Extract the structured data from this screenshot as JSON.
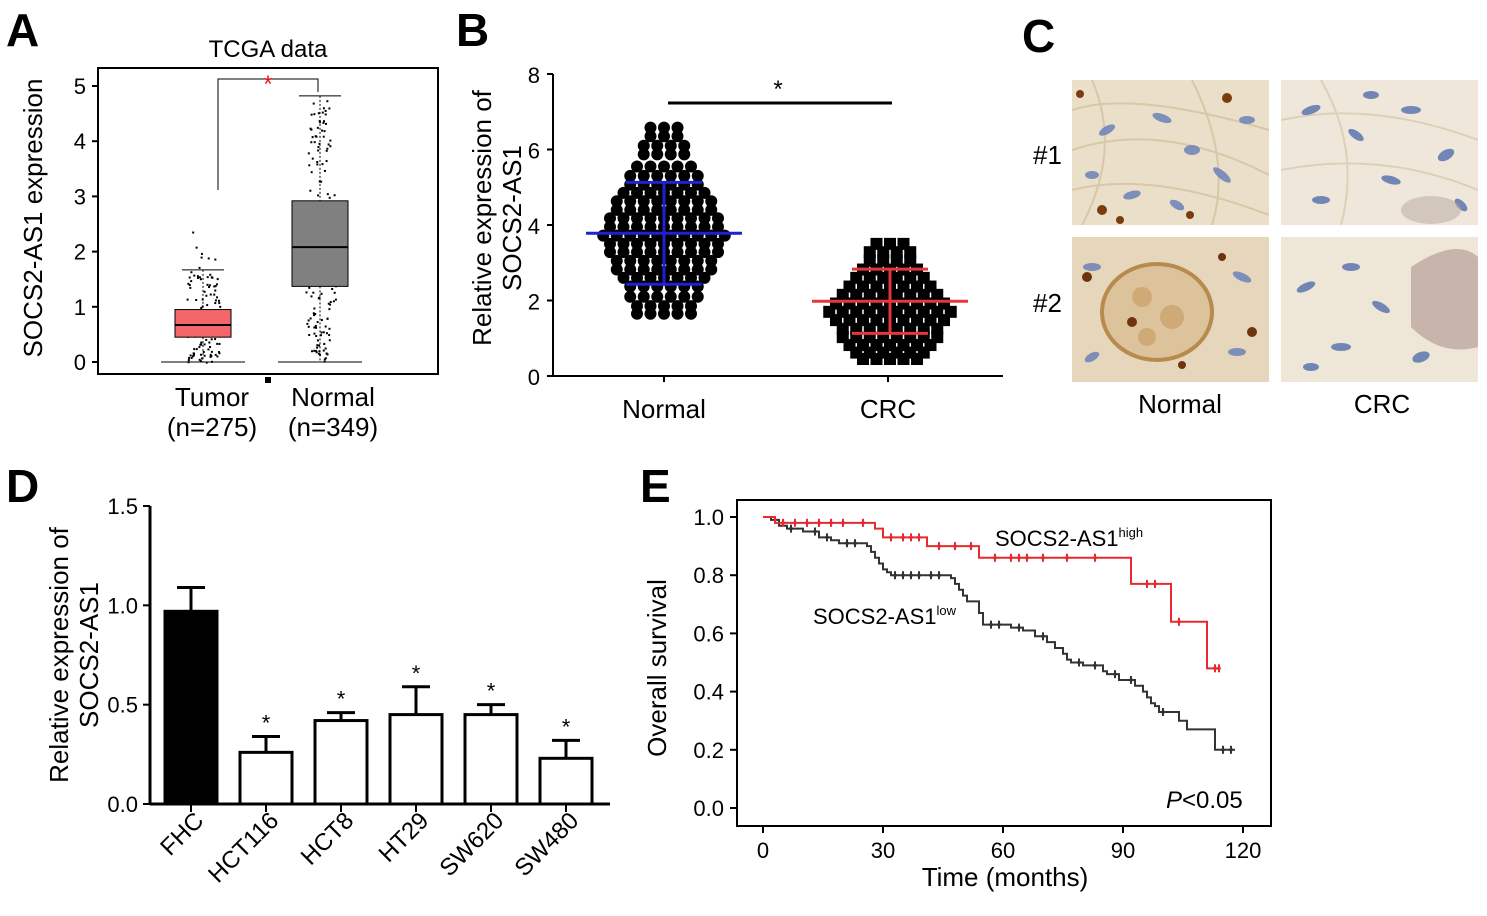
{
  "figure": {
    "panel_labels": [
      "A",
      "B",
      "C",
      "D",
      "E"
    ]
  },
  "chart_data": [
    {
      "panel": "A",
      "type": "box",
      "title": "TCGA data",
      "ylabel": "SOCS2-AS1 expression",
      "ylim": [
        0,
        5
      ],
      "yticks": [
        "0",
        "1",
        "2",
        "3",
        "4",
        "5"
      ],
      "categories": [
        "Tumor",
        "Normal"
      ],
      "category_n": [
        "(n=275)",
        "(n=349)"
      ],
      "boxes": [
        {
          "name": "Tumor",
          "color": "#f4666a",
          "min": 0.0,
          "q1": 0.45,
          "median": 0.67,
          "q3": 0.95,
          "max": 1.67,
          "n": 275,
          "outlier_max": 2.45
        },
        {
          "name": "Normal",
          "color": "#808080",
          "min": 0.0,
          "q1": 1.37,
          "median": 2.08,
          "q3": 2.92,
          "max": 4.82,
          "n": 349
        }
      ],
      "significance": "*",
      "significance_color": "#e31a1c"
    },
    {
      "panel": "B",
      "type": "scatter",
      "ylabel_lines": [
        "Relative expression of",
        "SOCS2-AS1"
      ],
      "ylim": [
        0,
        8
      ],
      "yticks": [
        "0",
        "2",
        "4",
        "6",
        "8"
      ],
      "categories": [
        "Normal",
        "CRC"
      ],
      "series": [
        {
          "name": "Normal",
          "marker": "circle",
          "mean": 3.78,
          "sd": 1.35,
          "min": 1.65,
          "max": 6.58,
          "bar_color": "#1f1fd4",
          "row_values": [
            6.58,
            6.35,
            6.1,
            5.87,
            5.55,
            5.3,
            5.07,
            4.85,
            4.63,
            4.4,
            4.18,
            3.95,
            3.72,
            3.5,
            3.28,
            3.05,
            2.82,
            2.6,
            2.37,
            2.1,
            1.85,
            1.65
          ]
        },
        {
          "name": "CRC",
          "marker": "square",
          "mean": 1.98,
          "sd": 0.85,
          "min": 0.45,
          "max": 3.5,
          "bar_color": "#e8353b",
          "row_values": [
            3.5,
            3.28,
            3.05,
            2.82,
            2.6,
            2.37,
            2.15,
            1.92,
            1.7,
            1.48,
            1.25,
            1.03,
            0.82,
            0.62,
            0.45
          ]
        }
      ],
      "significance": "*"
    },
    {
      "panel": "D",
      "type": "bar",
      "ylabel_lines": [
        "Relative expression of",
        "SOCS2-AS1"
      ],
      "ylim": [
        0,
        1.5
      ],
      "yticks": [
        "0.0",
        "0.5",
        "1.0",
        "1.5"
      ],
      "categories": [
        "FHC",
        "HCT116",
        "HCT8",
        "HT29",
        "SW620",
        "SW480"
      ],
      "values": [
        0.97,
        0.26,
        0.42,
        0.45,
        0.45,
        0.23
      ],
      "errors": [
        0.12,
        0.08,
        0.04,
        0.14,
        0.05,
        0.09
      ],
      "fills": [
        "#000000",
        "#ffffff",
        "#ffffff",
        "#ffffff",
        "#ffffff",
        "#ffffff"
      ],
      "significance": [
        "",
        "*",
        "*",
        "*",
        "*",
        "*"
      ]
    },
    {
      "panel": "E",
      "type": "line",
      "subtype": "kaplan-meier",
      "xlabel": "Time (months)",
      "ylabel": "Overall survival",
      "xlim": [
        0,
        120
      ],
      "ylim": [
        0,
        1.0
      ],
      "xticks": [
        "0",
        "30",
        "60",
        "90",
        "120"
      ],
      "yticks": [
        "0.0",
        "0.2",
        "0.4",
        "0.6",
        "0.8",
        "1.0"
      ],
      "series": [
        {
          "name_main": "SOCS2-AS1",
          "name_sup": "high",
          "color": "#e8292f",
          "steps": [
            [
              0,
              1.0
            ],
            [
              3,
              0.98
            ],
            [
              28,
              0.96
            ],
            [
              30,
              0.93
            ],
            [
              41,
              0.9
            ],
            [
              54,
              0.86
            ],
            [
              92,
              0.77
            ],
            [
              102,
              0.64
            ],
            [
              111,
              0.48
            ],
            [
              114,
              0.48
            ]
          ],
          "censor": [
            [
              5,
              0.98
            ],
            [
              8,
              0.98
            ],
            [
              11,
              0.98
            ],
            [
              14,
              0.98
            ],
            [
              17,
              0.98
            ],
            [
              20,
              0.98
            ],
            [
              25,
              0.98
            ],
            [
              32,
              0.93
            ],
            [
              35,
              0.93
            ],
            [
              37,
              0.93
            ],
            [
              39,
              0.93
            ],
            [
              44,
              0.9
            ],
            [
              48,
              0.9
            ],
            [
              52,
              0.9
            ],
            [
              58,
              0.86
            ],
            [
              62,
              0.86
            ],
            [
              64,
              0.86
            ],
            [
              66,
              0.86
            ],
            [
              70,
              0.86
            ],
            [
              76,
              0.86
            ],
            [
              83,
              0.86
            ],
            [
              96,
              0.77
            ],
            [
              98,
              0.77
            ],
            [
              104,
              0.64
            ],
            [
              113,
              0.48
            ],
            [
              114,
              0.48
            ]
          ]
        },
        {
          "name_main": "SOCS2-AS1",
          "name_sup": "low",
          "color": "#333333",
          "steps": [
            [
              0,
              1.0
            ],
            [
              2,
              0.99
            ],
            [
              4,
              0.97
            ],
            [
              6,
              0.96
            ],
            [
              10,
              0.95
            ],
            [
              14,
              0.93
            ],
            [
              17,
              0.92
            ],
            [
              19,
              0.91
            ],
            [
              26,
              0.9
            ],
            [
              27,
              0.88
            ],
            [
              28,
              0.86
            ],
            [
              29,
              0.84
            ],
            [
              30,
              0.82
            ],
            [
              31,
              0.81
            ],
            [
              32,
              0.8
            ],
            [
              47,
              0.79
            ],
            [
              48,
              0.77
            ],
            [
              49,
              0.75
            ],
            [
              50,
              0.73
            ],
            [
              51,
              0.71
            ],
            [
              54,
              0.67
            ],
            [
              55,
              0.63
            ],
            [
              62,
              0.62
            ],
            [
              65,
              0.61
            ],
            [
              68,
              0.59
            ],
            [
              71,
              0.57
            ],
            [
              73,
              0.55
            ],
            [
              75,
              0.53
            ],
            [
              76,
              0.51
            ],
            [
              77,
              0.5
            ],
            [
              80,
              0.49
            ],
            [
              85,
              0.47
            ],
            [
              86,
              0.46
            ],
            [
              89,
              0.44
            ],
            [
              93,
              0.42
            ],
            [
              95,
              0.4
            ],
            [
              96,
              0.38
            ],
            [
              97,
              0.36
            ],
            [
              98,
              0.35
            ],
            [
              99,
              0.33
            ],
            [
              104,
              0.3
            ],
            [
              106,
              0.27
            ],
            [
              113,
              0.2
            ],
            [
              118,
              0.2
            ]
          ],
          "censor": [
            [
              7,
              0.96
            ],
            [
              13,
              0.95
            ],
            [
              16,
              0.93
            ],
            [
              21,
              0.91
            ],
            [
              23,
              0.91
            ],
            [
              33,
              0.8
            ],
            [
              35,
              0.8
            ],
            [
              37,
              0.8
            ],
            [
              39,
              0.8
            ],
            [
              42,
              0.8
            ],
            [
              44,
              0.8
            ],
            [
              57,
              0.63
            ],
            [
              59,
              0.63
            ],
            [
              64,
              0.62
            ],
            [
              70,
              0.59
            ],
            [
              79,
              0.5
            ],
            [
              83,
              0.49
            ],
            [
              88,
              0.46
            ],
            [
              92,
              0.44
            ],
            [
              100,
              0.33
            ],
            [
              115,
              0.2
            ],
            [
              117,
              0.2
            ]
          ]
        }
      ],
      "annotation_prefix": "P",
      "annotation_rest": "<0.05"
    }
  ],
  "panel_c": {
    "row_labels": [
      "#1",
      "#2"
    ],
    "col_labels": [
      "Normal",
      "CRC"
    ]
  }
}
